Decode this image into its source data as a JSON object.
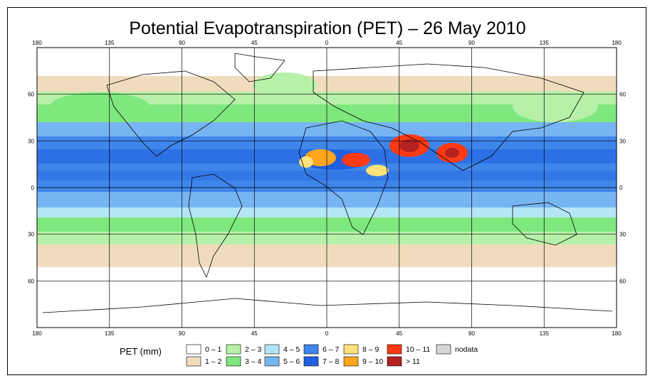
{
  "title": "Potential Evapotranspiration (PET) – 26 May 2010",
  "map": {
    "lon_ticks": [
      "180",
      "135",
      "90",
      "45",
      "0",
      "45",
      "90",
      "135",
      "180"
    ],
    "lat_ticks": [
      "60",
      "30",
      "0",
      "30",
      "60"
    ],
    "lon_range": [
      -180,
      180
    ],
    "lat_range": [
      -90,
      90
    ],
    "grid": true
  },
  "legend": {
    "title": "PET (mm)",
    "items": [
      {
        "label": "0 – 1",
        "color": "#ffffff"
      },
      {
        "label": "1 – 2",
        "color": "#f0dcbc"
      },
      {
        "label": "2 – 3",
        "color": "#b7f0a8"
      },
      {
        "label": "3 – 4",
        "color": "#7ee87e"
      },
      {
        "label": "4 – 5",
        "color": "#b5e6f6"
      },
      {
        "label": "5 – 6",
        "color": "#77b4f2"
      },
      {
        "label": "6 – 7",
        "color": "#3f86ea"
      },
      {
        "label": "7 – 8",
        "color": "#1f5fe0"
      },
      {
        "label": "8 – 9",
        "color": "#ffe27a"
      },
      {
        "label": "9 – 10",
        "color": "#ffa51e"
      },
      {
        "label": "10 – 11",
        "color": "#ff3a14"
      },
      {
        "label": "> 11",
        "color": "#b42222"
      },
      {
        "label": "nodata",
        "color": "#d6d6d6"
      }
    ]
  }
}
